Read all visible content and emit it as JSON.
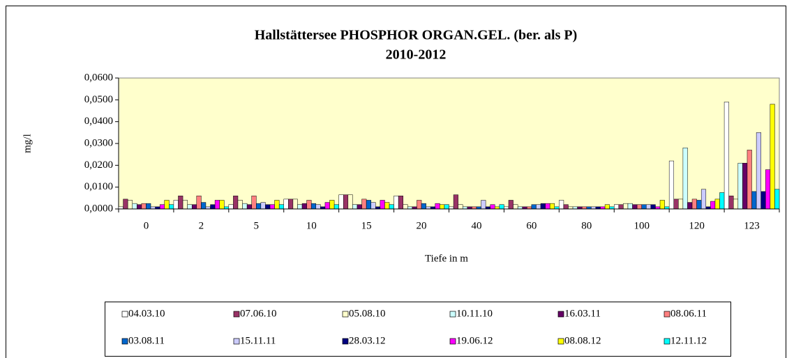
{
  "chart_data": {
    "type": "bar",
    "title": "Hallstättersee PHOSPHOR  ORGAN.GEL.  (ber. als P)",
    "subtitle": "2010-2012",
    "y_label": "mg/l",
    "x_label": "Tiefe in m",
    "categories": [
      "0",
      "2",
      "5",
      "10",
      "15",
      "20",
      "40",
      "60",
      "80",
      "100",
      "120",
      "123"
    ],
    "ylim": [
      0,
      0.06
    ],
    "yticks": [
      {
        "value": 0,
        "label": "0,0000"
      },
      {
        "value": 0.01,
        "label": "0,0100"
      },
      {
        "value": 0.02,
        "label": "0,0200"
      },
      {
        "value": 0.03,
        "label": "0,0300"
      },
      {
        "value": 0.04,
        "label": "0,0400"
      },
      {
        "value": 0.05,
        "label": "0,0500"
      },
      {
        "value": 0.06,
        "label": "0,0600"
      }
    ],
    "series": [
      {
        "name": "04.03.10",
        "color": "#ffffff",
        "values": [
          0.001,
          0.004,
          0.002,
          0.0045,
          0.0065,
          0.006,
          0.001,
          0.001,
          0.004,
          0.002,
          0.022,
          0.049
        ]
      },
      {
        "name": "07.06.10",
        "color": "#993366",
        "values": [
          0.0045,
          0.006,
          0.006,
          0.0045,
          0.0065,
          0.006,
          0.0065,
          0.004,
          0.002,
          0.002,
          0.0045,
          0.006
        ]
      },
      {
        "name": "05.08.10",
        "color": "#ffffcc",
        "values": [
          0.004,
          0.004,
          0.004,
          0.0045,
          0.0065,
          0.002,
          0.002,
          0.002,
          0.001,
          0.0025,
          0.0045,
          0.0045
        ]
      },
      {
        "name": "10.11.10",
        "color": "#ccffff",
        "values": [
          0.0025,
          0.002,
          0.0025,
          0.002,
          0.002,
          0.001,
          0.001,
          0.001,
          0.001,
          0.0025,
          0.028,
          0.021
        ]
      },
      {
        "name": "16.03.11",
        "color": "#660066",
        "values": [
          0.002,
          0.002,
          0.002,
          0.0025,
          0.002,
          0.001,
          0.001,
          0.001,
          0.001,
          0.002,
          0.003,
          0.021
        ]
      },
      {
        "name": "08.06.11",
        "color": "#ff8080",
        "values": [
          0.0025,
          0.006,
          0.006,
          0.004,
          0.0045,
          0.004,
          0.001,
          0.001,
          0.001,
          0.002,
          0.0045,
          0.027
        ]
      },
      {
        "name": "03.08.11",
        "color": "#0066cc",
        "values": [
          0.0025,
          0.003,
          0.0025,
          0.0025,
          0.004,
          0.0025,
          0.001,
          0.002,
          0.001,
          0.002,
          0.004,
          0.008
        ]
      },
      {
        "name": "15.11.11",
        "color": "#ccccff",
        "values": [
          0.001,
          0.001,
          0.003,
          0.002,
          0.003,
          0.001,
          0.004,
          0.002,
          0.001,
          0.002,
          0.009,
          0.035
        ]
      },
      {
        "name": "28.03.12",
        "color": "#000080",
        "values": [
          0.001,
          0.002,
          0.002,
          0.001,
          0.001,
          0.001,
          0.001,
          0.0025,
          0.001,
          0.002,
          0.001,
          0.008
        ]
      },
      {
        "name": "19.06.12",
        "color": "#ff00ff",
        "values": [
          0.002,
          0.004,
          0.002,
          0.003,
          0.004,
          0.0025,
          0.002,
          0.0025,
          0.001,
          0.001,
          0.0035,
          0.018
        ]
      },
      {
        "name": "08.08.12",
        "color": "#ffff00",
        "values": [
          0.004,
          0.004,
          0.004,
          0.004,
          0.003,
          0.002,
          0.001,
          0.0025,
          0.002,
          0.004,
          0.0045,
          0.048
        ]
      },
      {
        "name": "12.11.12",
        "color": "#00ffff",
        "values": [
          0.002,
          0.001,
          0.002,
          0.002,
          0.002,
          0.002,
          0.002,
          0.001,
          0.001,
          0.001,
          0.0075,
          0.009
        ]
      }
    ],
    "plot_background": "#ffffcc",
    "legend": "bottom"
  }
}
